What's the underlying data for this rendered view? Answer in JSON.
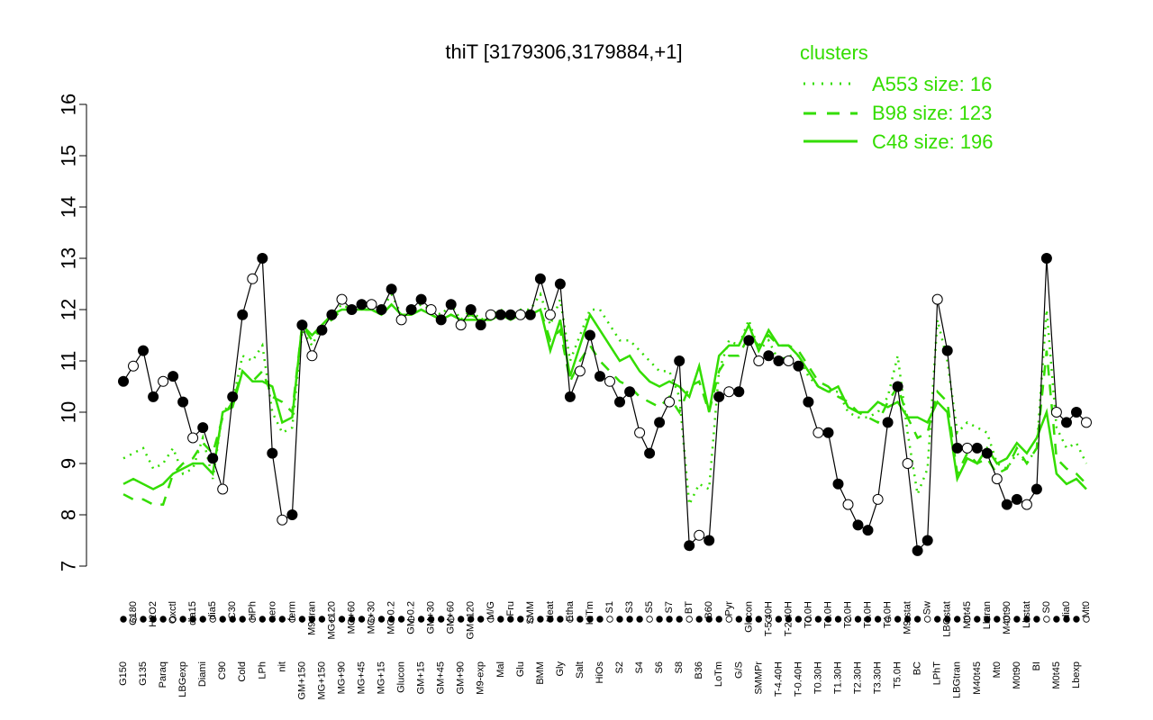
{
  "chart_data": {
    "type": "line",
    "title": "thiT [3179306,3179884,+1]",
    "ylim": [
      7,
      16
    ],
    "yticks": [
      7,
      8,
      9,
      10,
      11,
      12,
      13,
      14,
      15,
      16
    ],
    "legend": {
      "title": "clusters",
      "placement": "top-right",
      "entries": [
        {
          "label": "A553 size: 16",
          "style": "dotted"
        },
        {
          "label": "B98 size: 123",
          "style": "dashed"
        },
        {
          "label": "C48 size: 196",
          "style": "solid"
        }
      ]
    },
    "colors": {
      "series": "#33dd00",
      "points_filled": "#000000",
      "points_open": "#ffffff"
    },
    "x_labels": [
      "G150",
      "G180",
      "G135",
      "H2O2",
      "Paraq",
      "Oxctl",
      "LBGexp",
      "dia15",
      "Diami",
      "dia5",
      "C90",
      "C30",
      "Cold",
      "HPh",
      "LPh",
      "aero",
      "nit",
      "ferm",
      "GM+150",
      "M9-tran",
      "MG+150",
      "MG+120",
      "MG+90",
      "MG+60",
      "MG+45",
      "MG+30",
      "MG+15",
      "MG-0.2",
      "Glucon",
      "GM-0.2",
      "GM+15",
      "GM+30",
      "GM+45",
      "GM+60",
      "GM+90",
      "GM+120",
      "M9-exp",
      "M/G",
      "Mal",
      "Fru",
      "Glu",
      "SMM",
      "BMM",
      "Heat",
      "Gly",
      "Etha",
      "Salt",
      "HiTm",
      "HiOs",
      "S1",
      "S2",
      "S3",
      "S4",
      "S5",
      "S6",
      "S7",
      "S8",
      "BT",
      "B36",
      "B60",
      "LoTm",
      "Pyr",
      "G/S",
      "Glucon",
      "SMMPr",
      "T-5.40H",
      "T-4.40H",
      "T-2.40H",
      "T-0.40H",
      "T0.0H",
      "T0.30H",
      "T1.0H",
      "T1.30H",
      "T2.0H",
      "T2.30H",
      "T3.0H",
      "T3.30H",
      "T4.0H",
      "T5.0H",
      "M9-stat",
      "BC",
      "Sw",
      "LPhT",
      "LBGstat",
      "LBGtran",
      "M0t45",
      "M40t45",
      "Lbtran",
      "Mt0",
      "M40t90",
      "M0t90",
      "Lbstat",
      "BI",
      "S0",
      "M0t45",
      "dia0",
      "Lbexp",
      "Mt0"
    ],
    "series": [
      {
        "name": "thiT expression",
        "values": [
          10.6,
          10.9,
          11.2,
          10.3,
          10.6,
          10.7,
          10.2,
          9.5,
          9.7,
          9.1,
          8.5,
          10.3,
          11.9,
          12.6,
          13.0,
          9.2,
          7.9,
          8.0,
          11.7,
          11.1,
          11.6,
          11.9,
          12.2,
          12.0,
          12.1,
          12.1,
          12.0,
          12.4,
          11.8,
          12.0,
          12.2,
          12.0,
          11.8,
          12.1,
          11.7,
          12.0,
          11.7,
          11.9,
          11.9,
          11.9,
          11.9,
          11.9,
          12.6,
          11.9,
          12.5,
          10.3,
          10.8,
          11.5,
          10.7,
          10.6,
          10.2,
          10.4,
          9.6,
          9.2,
          9.8,
          10.2,
          11.0,
          7.4,
          7.6,
          7.5,
          10.3,
          10.4,
          10.4,
          11.4,
          11.0,
          11.1,
          11.0,
          11.0,
          10.9,
          10.2,
          9.6,
          9.6,
          8.6,
          8.2,
          7.8,
          7.7,
          8.3,
          9.8,
          10.5,
          9.0,
          7.3,
          7.5,
          12.2,
          11.2,
          9.3,
          9.3,
          9.3,
          9.2,
          8.7,
          8.2,
          8.3,
          8.2,
          8.5,
          13.0,
          10.0,
          9.8,
          10.0,
          9.8
        ],
        "cluster_A553": [
          9.1,
          9.2,
          9.3,
          8.9,
          9.0,
          9.3,
          8.8,
          8.9,
          9.5,
          8.7,
          10.0,
          10.2,
          11.1,
          11.0,
          11.3,
          10.0,
          9.6,
          9.7,
          11.6,
          11.3,
          11.7,
          11.9,
          12.1,
          12.0,
          12.1,
          12.1,
          12.0,
          12.3,
          11.9,
          12.0,
          12.1,
          12.0,
          11.9,
          12.1,
          11.8,
          12.0,
          11.8,
          11.9,
          12.0,
          11.9,
          12.0,
          12.0,
          12.3,
          11.7,
          12.2,
          11.0,
          11.5,
          12.0,
          12.0,
          11.7,
          11.4,
          11.4,
          11.2,
          11.0,
          10.8,
          10.8,
          10.3,
          8.2,
          8.6,
          8.5,
          10.8,
          11.4,
          11.3,
          11.8,
          11.2,
          11.4,
          11.0,
          11.1,
          11.1,
          10.7,
          10.5,
          10.4,
          10.4,
          10.0,
          9.9,
          9.9,
          10.0,
          10.3,
          11.1,
          9.6,
          8.4,
          8.9,
          11.8,
          11.0,
          9.6,
          9.8,
          9.7,
          9.6,
          9.0,
          8.9,
          9.2,
          9.0,
          9.3,
          12.0,
          9.7,
          9.3,
          9.4,
          9.0
        ],
        "cluster_B98": [
          8.4,
          8.3,
          8.3,
          8.2,
          8.2,
          8.8,
          9.0,
          9.1,
          9.4,
          9.2,
          9.9,
          10.2,
          10.8,
          10.6,
          10.8,
          10.3,
          10.2,
          10.0,
          11.7,
          11.4,
          11.7,
          11.8,
          12.0,
          12.0,
          12.0,
          12.0,
          11.9,
          12.1,
          11.9,
          11.9,
          12.0,
          11.9,
          11.8,
          11.9,
          11.8,
          11.9,
          11.8,
          11.8,
          11.9,
          11.9,
          11.9,
          11.9,
          12.0,
          11.4,
          11.6,
          10.6,
          11.0,
          11.3,
          11.0,
          10.8,
          10.6,
          10.5,
          10.3,
          10.2,
          10.1,
          10.3,
          10.0,
          10.5,
          10.6,
          10.0,
          10.8,
          11.1,
          11.1,
          11.5,
          11.3,
          11.5,
          11.3,
          11.3,
          11.2,
          10.9,
          10.6,
          10.5,
          10.3,
          10.2,
          10.0,
          9.9,
          9.8,
          10.2,
          10.5,
          9.9,
          9.5,
          9.6,
          10.4,
          10.2,
          8.8,
          9.2,
          9.0,
          9.1,
          8.8,
          8.9,
          9.3,
          9.0,
          9.3,
          11.2,
          9.1,
          8.9,
          8.8,
          8.6
        ],
        "cluster_C48": [
          8.6,
          8.7,
          8.6,
          8.5,
          8.6,
          8.8,
          8.9,
          9.0,
          9.0,
          8.8,
          10.0,
          10.1,
          10.8,
          10.6,
          10.6,
          10.5,
          9.8,
          9.9,
          11.7,
          11.5,
          11.7,
          11.9,
          12.0,
          12.0,
          12.0,
          12.0,
          11.9,
          12.1,
          11.9,
          11.9,
          12.0,
          11.9,
          11.8,
          11.9,
          11.8,
          11.8,
          11.8,
          11.8,
          11.9,
          11.8,
          11.9,
          11.9,
          12.0,
          11.2,
          11.8,
          10.7,
          11.3,
          11.9,
          11.6,
          11.3,
          11.0,
          11.1,
          10.8,
          10.6,
          10.5,
          10.6,
          10.5,
          10.3,
          10.9,
          10.0,
          11.1,
          11.3,
          11.3,
          11.7,
          11.2,
          11.6,
          11.3,
          11.3,
          11.1,
          10.8,
          10.5,
          10.4,
          10.5,
          10.1,
          10.0,
          10.0,
          10.2,
          10.1,
          10.2,
          9.9,
          9.9,
          9.8,
          10.2,
          10.0,
          8.7,
          9.1,
          9.0,
          9.3,
          9.0,
          9.1,
          9.4,
          9.2,
          9.5,
          10.0,
          8.8,
          8.6,
          8.7,
          8.5
        ]
      }
    ]
  }
}
